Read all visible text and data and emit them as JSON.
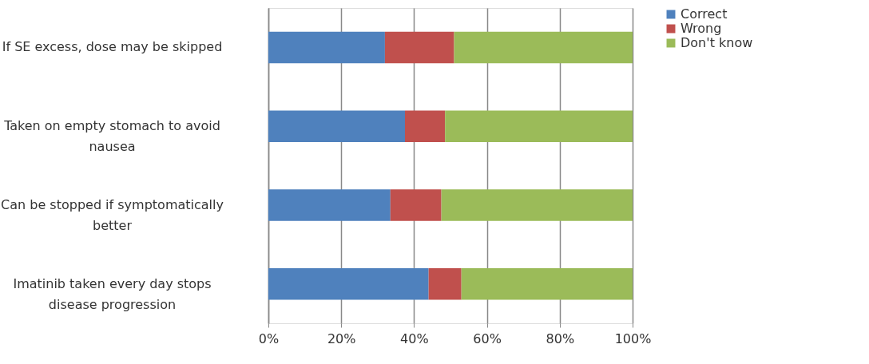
{
  "chart_data": {
    "type": "bar",
    "orientation": "horizontal",
    "stacked": true,
    "categories": [
      "If SE excess, dose may be skipped",
      "Taken on empty stomach to avoid\nnausea",
      "Can be stopped if symptomatically\nbetter",
      "Imatinib taken every day stops\ndisease progression"
    ],
    "series": [
      {
        "name": "Correct",
        "color": "#4f81bd",
        "values": [
          32,
          37.5,
          33.5,
          44
        ]
      },
      {
        "name": "Wrong",
        "color": "#c0504d",
        "values": [
          19,
          11,
          14,
          9
        ]
      },
      {
        "name": "Don't know",
        "color": "#9bbb59",
        "values": [
          49,
          51.5,
          52.5,
          47
        ]
      }
    ],
    "xlim": [
      0,
      100
    ],
    "xticks": [
      {
        "value": 0,
        "label": "0%"
      },
      {
        "value": 20,
        "label": "20%"
      },
      {
        "value": 40,
        "label": "40%"
      },
      {
        "value": 60,
        "label": "60%"
      },
      {
        "value": 80,
        "label": "80%"
      },
      {
        "value": 100,
        "label": "100%"
      }
    ],
    "grid": "x",
    "legend": "right"
  }
}
